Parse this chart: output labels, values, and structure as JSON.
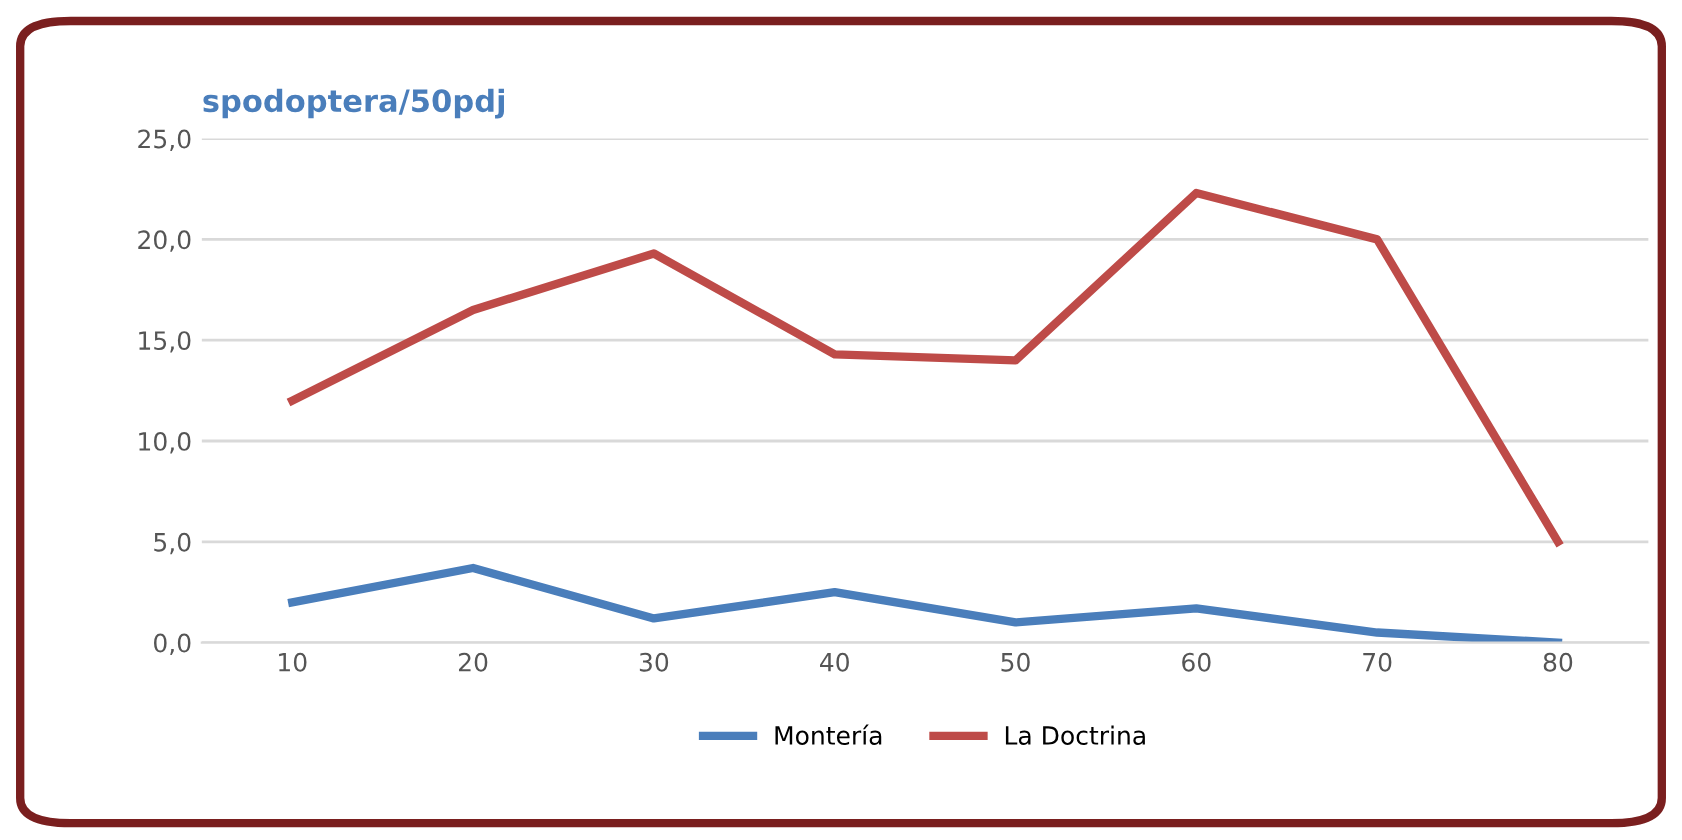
{
  "chart_data": {
    "type": "line",
    "title": "spodoptera/50pdj",
    "categories": [
      "10",
      "20",
      "30",
      "40",
      "50",
      "60",
      "70",
      "80"
    ],
    "series": [
      {
        "name": "Montería",
        "color": "#4a7ebb",
        "values": [
          2.0,
          3.7,
          1.2,
          2.5,
          1.0,
          1.7,
          0.5,
          0.0
        ]
      },
      {
        "name": "La Doctrina",
        "color": "#be4b48",
        "values": [
          12.0,
          16.5,
          19.3,
          14.3,
          14.0,
          22.3,
          20.0,
          5.0
        ]
      }
    ],
    "ylim": [
      0,
      25
    ],
    "yticks": [
      {
        "value": 0,
        "label": "0,0"
      },
      {
        "value": 5,
        "label": "5,0"
      },
      {
        "value": 10,
        "label": "10,0"
      },
      {
        "value": 15,
        "label": "15,0"
      },
      {
        "value": 20,
        "label": "20,0"
      },
      {
        "value": 25,
        "label": "25,0"
      }
    ],
    "grid": "y",
    "legend": "bottom",
    "marker": "none",
    "line_style": "solid"
  }
}
